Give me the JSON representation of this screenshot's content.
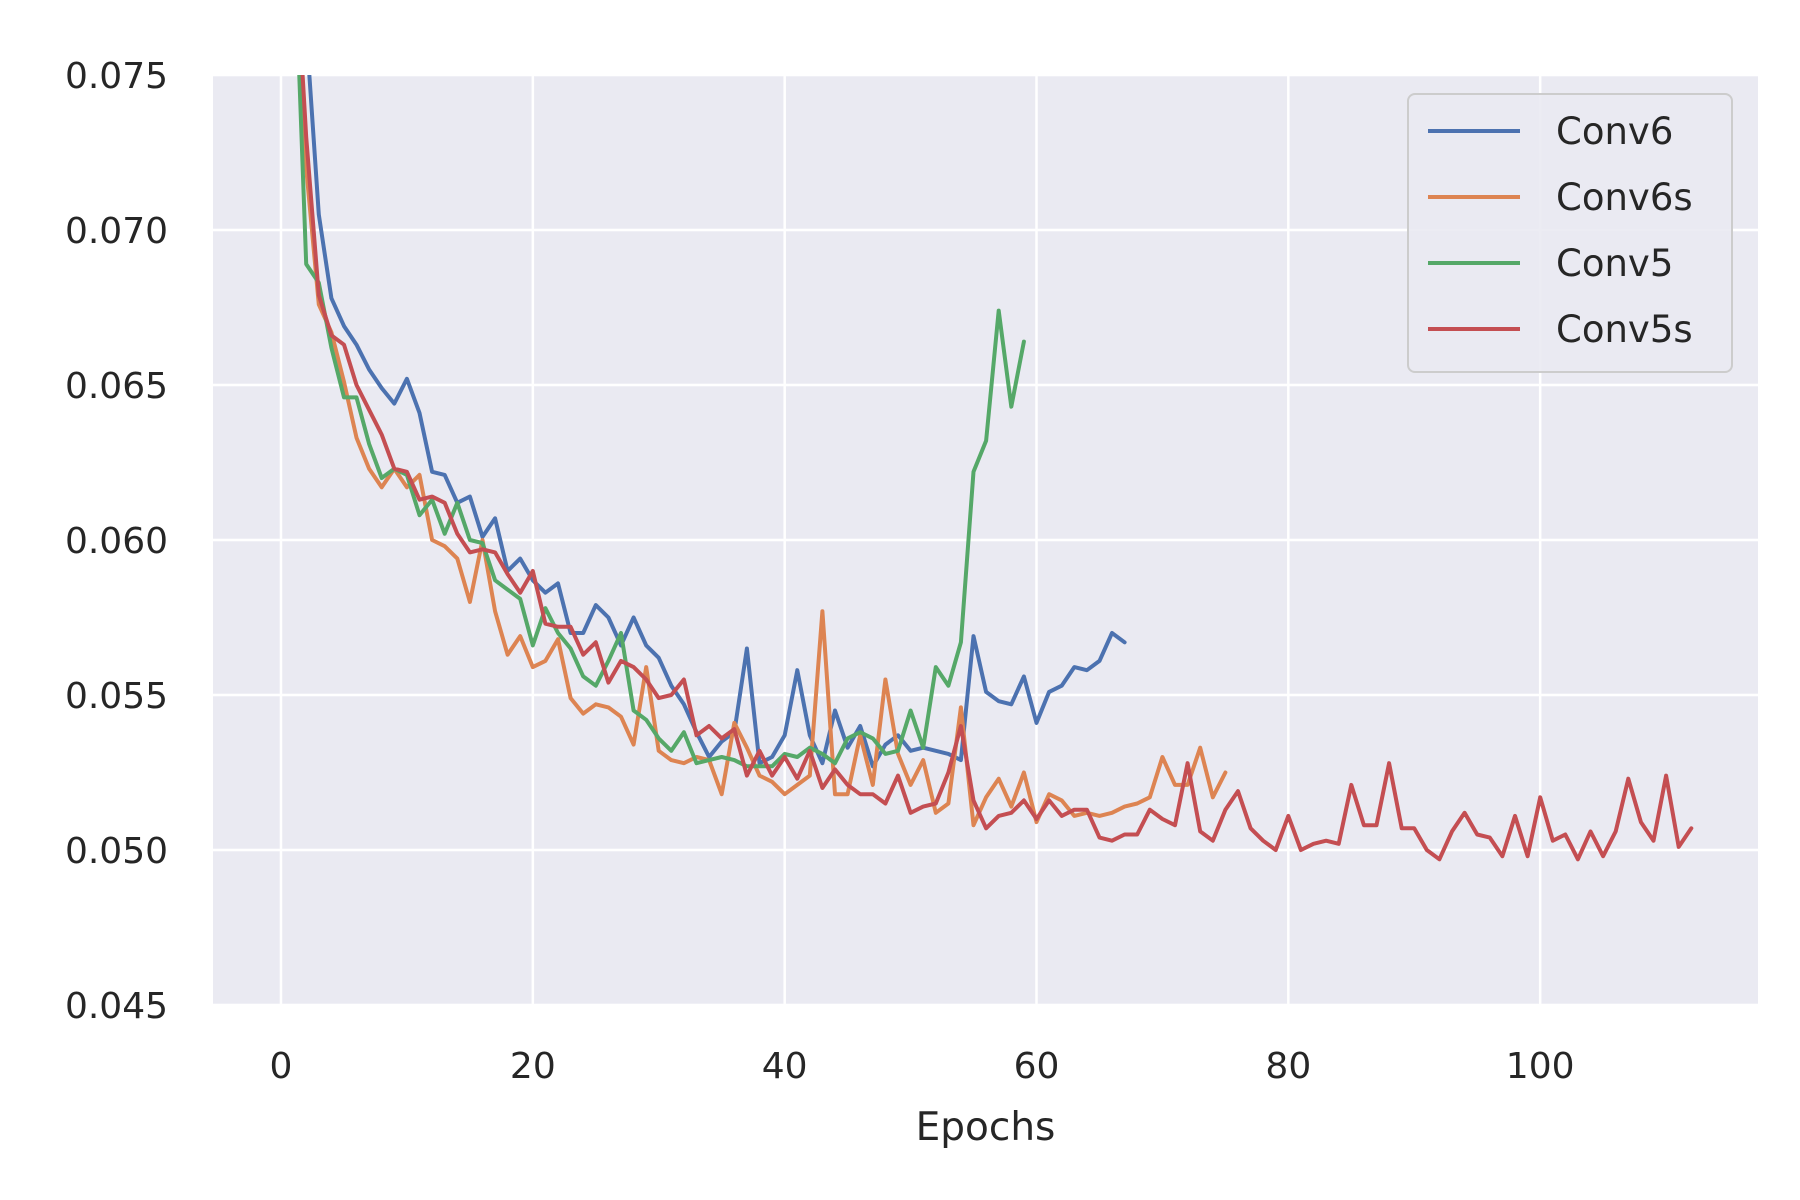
{
  "chart_data": {
    "type": "line",
    "title": "",
    "xlabel": "Epochs",
    "ylabel": "",
    "xlim": [
      -5.4,
      117.3
    ],
    "ylim": [
      0.045,
      0.075
    ],
    "xticks": [
      {
        "value": 0,
        "label": "0"
      },
      {
        "value": 20,
        "label": "20"
      },
      {
        "value": 40,
        "label": "40"
      },
      {
        "value": 60,
        "label": "60"
      },
      {
        "value": 80,
        "label": "80"
      },
      {
        "value": 100,
        "label": "100"
      }
    ],
    "yticks": [
      {
        "value": 0.045,
        "label": "0.045"
      },
      {
        "value": 0.05,
        "label": "0.050"
      },
      {
        "value": 0.055,
        "label": "0.055"
      },
      {
        "value": 0.06,
        "label": "0.060"
      },
      {
        "value": 0.065,
        "label": "0.065"
      },
      {
        "value": 0.07,
        "label": "0.070"
      },
      {
        "value": 0.075,
        "label": "0.075"
      }
    ],
    "grid": true,
    "background": "#eaeaf2",
    "grid_color": "#ffffff",
    "legend": "top-right",
    "series": [
      {
        "name": "Conv6",
        "color": "#4c72b0",
        "x_start": 1,
        "values": [
          0.08,
          0.0765,
          0.0705,
          0.0678,
          0.0669,
          0.0663,
          0.0655,
          0.0649,
          0.0644,
          0.0652,
          0.0641,
          0.0622,
          0.0621,
          0.0612,
          0.0614,
          0.0601,
          0.0607,
          0.059,
          0.0594,
          0.0587,
          0.0583,
          0.0586,
          0.057,
          0.057,
          0.0579,
          0.0575,
          0.0566,
          0.0575,
          0.0566,
          0.0562,
          0.0553,
          0.0547,
          0.0538,
          0.053,
          0.0535,
          0.0538,
          0.0565,
          0.0528,
          0.053,
          0.0537,
          0.0558,
          0.0537,
          0.0528,
          0.0545,
          0.0533,
          0.054,
          0.0527,
          0.0534,
          0.0537,
          0.0532,
          0.0533,
          0.0532,
          0.0531,
          0.0529,
          0.0569,
          0.0551,
          0.0548,
          0.0547,
          0.0556,
          0.0541,
          0.0551,
          0.0553,
          0.0559,
          0.0558,
          0.0561,
          0.057,
          0.0567
        ]
      },
      {
        "name": "Conv6s",
        "color": "#dd8452",
        "x_start": 1,
        "values": [
          0.08,
          0.072,
          0.0676,
          0.0667,
          0.0651,
          0.0633,
          0.0623,
          0.0617,
          0.0623,
          0.0617,
          0.0621,
          0.06,
          0.0598,
          0.0594,
          0.058,
          0.06,
          0.0577,
          0.0563,
          0.0569,
          0.0559,
          0.0561,
          0.0568,
          0.0549,
          0.0544,
          0.0547,
          0.0546,
          0.0543,
          0.0534,
          0.0559,
          0.0532,
          0.0529,
          0.0528,
          0.053,
          0.0529,
          0.0518,
          0.0541,
          0.0533,
          0.0524,
          0.0522,
          0.0518,
          0.0521,
          0.0524,
          0.0577,
          0.0518,
          0.0518,
          0.0537,
          0.0521,
          0.0555,
          0.0531,
          0.0521,
          0.0529,
          0.0512,
          0.0515,
          0.0546,
          0.0508,
          0.0517,
          0.0523,
          0.0514,
          0.0525,
          0.0509,
          0.0518,
          0.0516,
          0.0511,
          0.0512,
          0.0511,
          0.0512,
          0.0514,
          0.0515,
          0.0517,
          0.053,
          0.0521,
          0.0521,
          0.0533,
          0.0517,
          0.0525
        ]
      },
      {
        "name": "Conv5",
        "color": "#55a868",
        "x_start": 1,
        "values": [
          0.08,
          0.0689,
          0.0683,
          0.0662,
          0.0646,
          0.0646,
          0.0631,
          0.062,
          0.0623,
          0.0621,
          0.0608,
          0.0613,
          0.0602,
          0.0612,
          0.06,
          0.0599,
          0.0587,
          0.0584,
          0.0581,
          0.0566,
          0.0578,
          0.057,
          0.0565,
          0.0556,
          0.0553,
          0.0561,
          0.057,
          0.0545,
          0.0542,
          0.0536,
          0.0532,
          0.0538,
          0.0528,
          0.0529,
          0.053,
          0.0529,
          0.0527,
          0.0527,
          0.0527,
          0.0531,
          0.053,
          0.0533,
          0.0531,
          0.0528,
          0.0536,
          0.0538,
          0.0536,
          0.0531,
          0.0532,
          0.0545,
          0.0533,
          0.0559,
          0.0553,
          0.0567,
          0.0622,
          0.0632,
          0.0674,
          0.0643,
          0.0664
        ]
      },
      {
        "name": "Conv5s",
        "color": "#c44e52",
        "x_start": 1,
        "values": [
          0.08,
          0.073,
          0.0679,
          0.0666,
          0.0663,
          0.065,
          0.0642,
          0.0634,
          0.0623,
          0.0622,
          0.0613,
          0.0614,
          0.0612,
          0.0602,
          0.0596,
          0.0597,
          0.0596,
          0.0589,
          0.0583,
          0.059,
          0.0573,
          0.0572,
          0.0572,
          0.0563,
          0.0567,
          0.0554,
          0.0561,
          0.0559,
          0.0555,
          0.0549,
          0.055,
          0.0555,
          0.0537,
          0.054,
          0.0536,
          0.0539,
          0.0524,
          0.0532,
          0.0524,
          0.053,
          0.0523,
          0.0532,
          0.052,
          0.0526,
          0.0521,
          0.0518,
          0.0518,
          0.0515,
          0.0524,
          0.0512,
          0.0514,
          0.0515,
          0.0525,
          0.054,
          0.0516,
          0.0507,
          0.0511,
          0.0512,
          0.0516,
          0.051,
          0.0516,
          0.0511,
          0.0513,
          0.0513,
          0.0504,
          0.0503,
          0.0505,
          0.0505,
          0.0513,
          0.051,
          0.0508,
          0.0528,
          0.0506,
          0.0503,
          0.0513,
          0.0519,
          0.0507,
          0.0503,
          0.05,
          0.0511,
          0.05,
          0.0502,
          0.0503,
          0.0502,
          0.0521,
          0.0508,
          0.0508,
          0.0528,
          0.0507,
          0.0507,
          0.05,
          0.0497,
          0.0506,
          0.0512,
          0.0505,
          0.0504,
          0.0498,
          0.0511,
          0.0498,
          0.0517,
          0.0503,
          0.0505,
          0.0497,
          0.0506,
          0.0498,
          0.0506,
          0.0523,
          0.0509,
          0.0503,
          0.0524,
          0.0501,
          0.0507
        ]
      }
    ]
  }
}
